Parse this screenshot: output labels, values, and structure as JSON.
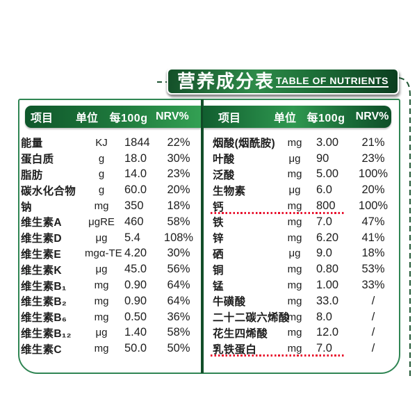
{
  "banner": {
    "title_cn": "营养成分表",
    "title_en": "TABLE OF NUTRIENTS"
  },
  "table_headers": {
    "item": "项目",
    "unit": "单位",
    "per100g": "每100g",
    "nrv": "NRV%"
  },
  "left_table": {
    "rows": [
      {
        "name": "能量",
        "unit": "KJ",
        "value": "1844",
        "nrv": "22%"
      },
      {
        "name": "蛋白质",
        "unit": "g",
        "value": "18.0",
        "nrv": "30%"
      },
      {
        "name": "脂肪",
        "unit": "g",
        "value": "14.0",
        "nrv": "23%"
      },
      {
        "name": "碳水化合物",
        "unit": "g",
        "value": "60.0",
        "nrv": "20%"
      },
      {
        "name": "钠",
        "unit": "mg",
        "value": "350",
        "nrv": "18%"
      },
      {
        "name": "维生素A",
        "unit": "μgRE",
        "value": "460",
        "nrv": "58%"
      },
      {
        "name": "维生素D",
        "unit": "μg",
        "value": "5.4",
        "nrv": "108%"
      },
      {
        "name": "维生素E",
        "unit": "mgα-TE",
        "value": "4.20",
        "nrv": "30%"
      },
      {
        "name": "维生素K",
        "unit": "μg",
        "value": "45.0",
        "nrv": "56%"
      },
      {
        "name": "维生素B₁",
        "unit": "mg",
        "value": "0.90",
        "nrv": "64%"
      },
      {
        "name": "维生素B₂",
        "unit": "mg",
        "value": "0.90",
        "nrv": "64%"
      },
      {
        "name": "维生素B₆",
        "unit": "mg",
        "value": "0.50",
        "nrv": "36%"
      },
      {
        "name": "维生素B₁₂",
        "unit": "μg",
        "value": "1.40",
        "nrv": "58%"
      },
      {
        "name": "维生素C",
        "unit": "mg",
        "value": "50.0",
        "nrv": "50%"
      }
    ]
  },
  "right_table": {
    "rows": [
      {
        "name": "烟酸(烟酰胺)",
        "unit": "mg",
        "value": "3.00",
        "nrv": "21%"
      },
      {
        "name": "叶酸",
        "unit": "μg",
        "value": "90",
        "nrv": "23%"
      },
      {
        "name": "泛酸",
        "unit": "mg",
        "value": "5.00",
        "nrv": "100%"
      },
      {
        "name": "生物素",
        "unit": "μg",
        "value": "6.0",
        "nrv": "20%"
      },
      {
        "name": "钙",
        "unit": "mg",
        "value": "800",
        "nrv": "100%",
        "underline": true
      },
      {
        "name": "铁",
        "unit": "mg",
        "value": "7.0",
        "nrv": "47%"
      },
      {
        "name": "锌",
        "unit": "mg",
        "value": "6.20",
        "nrv": "41%"
      },
      {
        "name": "硒",
        "unit": "μg",
        "value": "9.0",
        "nrv": "18%"
      },
      {
        "name": "铜",
        "unit": "mg",
        "value": "0.80",
        "nrv": "53%"
      },
      {
        "name": "锰",
        "unit": "mg",
        "value": "1.00",
        "nrv": "33%"
      },
      {
        "name": "牛磺酸",
        "unit": "mg",
        "value": "33.0",
        "nrv": "/"
      },
      {
        "name": "二十二碳六烯酸",
        "unit": "mg",
        "value": "8.0",
        "nrv": "/"
      },
      {
        "name": "花生四烯酸",
        "unit": "mg",
        "value": "12.0",
        "nrv": "/"
      },
      {
        "name": "乳铁蛋白",
        "unit": "mg",
        "value": "7.0",
        "nrv": "/",
        "underline": true
      }
    ]
  },
  "colors": {
    "banner_green_dark": "#0b3d1f",
    "banner_green": "#2e8a49",
    "header_gradient_start": "#0f572b",
    "header_gradient_end": "#33a053",
    "panel_border": "#2f8553",
    "divider": "#134f2a",
    "dotted_underline_red": "#e8112d",
    "dash_decoration": "#1e5532",
    "text": "#1d1d1d"
  }
}
